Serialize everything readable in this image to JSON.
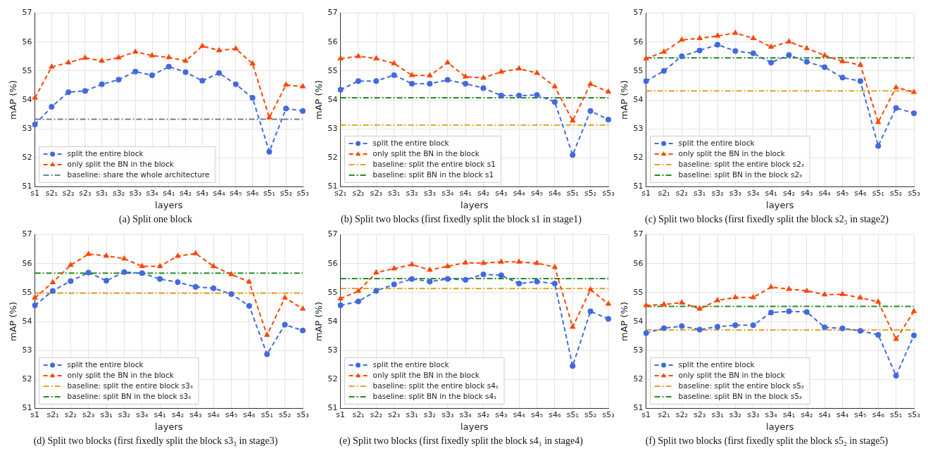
{
  "chart_data": [
    {
      "type": "line",
      "title": "(a) Split one block",
      "xlabel": "layers",
      "ylabel": "mAP (%)",
      "ylim": [
        51,
        57
      ],
      "yticks": [
        51,
        52,
        53,
        54,
        55,
        56,
        57
      ],
      "grid": true,
      "legend": "bottom left",
      "line_style": "dashed",
      "categories": [
        "s1",
        "s2₁",
        "s2₂",
        "s2₃",
        "s3₁",
        "s3₂",
        "s3₃",
        "s3₄",
        "s4₁",
        "s4₂",
        "s4₃",
        "s4₄",
        "s4₅",
        "s4₆",
        "s5₁",
        "s5₂",
        "s5₃"
      ],
      "series": [
        {
          "name": "split the entire block",
          "color": "#4169e1",
          "marker": "circle",
          "values": [
            53.15,
            53.76,
            54.27,
            54.31,
            54.54,
            54.7,
            54.98,
            54.85,
            55.15,
            54.96,
            54.66,
            54.93,
            54.54,
            54.07,
            52.21,
            53.7,
            53.62
          ]
        },
        {
          "name": "only split the BN in the block",
          "color": "#ff4500",
          "marker": "triangle",
          "values": [
            54.07,
            55.14,
            55.29,
            55.45,
            55.35,
            55.46,
            55.66,
            55.53,
            55.47,
            55.35,
            55.86,
            55.71,
            55.77,
            55.25,
            53.39,
            54.52,
            54.46
          ]
        }
      ],
      "ref_lines": [
        {
          "axis": "y",
          "value": 53.33,
          "label": "baseline: share the whole architecture",
          "color": "#708090"
        }
      ]
    },
    {
      "type": "line",
      "title": "(b) Split two blocks (first fixedly split the block s1 in stage1)",
      "xlabel": "layers",
      "ylabel": "mAP (%)",
      "ylim": [
        51,
        57
      ],
      "yticks": [
        51,
        52,
        53,
        54,
        55,
        56,
        57
      ],
      "grid": true,
      "legend": "bottom left",
      "line_style": "dashed",
      "categories": [
        "s2₁",
        "s2₂",
        "s2₃",
        "s3₁",
        "s3₂",
        "s3₃",
        "s3₄",
        "s4₁",
        "s4₂",
        "s4₃",
        "s4₄",
        "s4₅",
        "s4₆",
        "s5₁",
        "s5₂",
        "s5₃"
      ],
      "series": [
        {
          "name": "split the entire block",
          "color": "#4169e1",
          "marker": "circle",
          "values": [
            54.35,
            54.65,
            54.65,
            54.86,
            54.56,
            54.56,
            54.69,
            54.56,
            54.41,
            54.15,
            54.15,
            54.17,
            53.93,
            52.1,
            53.62,
            53.32
          ]
        },
        {
          "name": "only split the BN in the block",
          "color": "#ff4500",
          "marker": "triangle",
          "values": [
            55.43,
            55.51,
            55.43,
            55.26,
            54.85,
            54.84,
            55.29,
            54.8,
            54.76,
            54.97,
            55.08,
            54.93,
            54.46,
            53.28,
            54.55,
            54.28
          ]
        }
      ],
      "ref_lines": [
        {
          "axis": "y",
          "value": 53.13,
          "label": "baseline: split the entire block s1",
          "color": "#e0a526"
        },
        {
          "axis": "y",
          "value": 54.07,
          "label": "baseline: split BN in the block s1",
          "color": "#228b22"
        }
      ]
    },
    {
      "type": "line",
      "title": "(c) Split two blocks (first fixedly split the block s2₃ in stage2)",
      "xlabel": "layers",
      "ylabel": "mAP (%)",
      "ylim": [
        51,
        57
      ],
      "yticks": [
        51,
        52,
        53,
        54,
        55,
        56,
        57
      ],
      "grid": true,
      "legend": "bottom left",
      "line_style": "dashed",
      "categories": [
        "s1",
        "s2₁",
        "s2₂",
        "s3₁",
        "s3₂",
        "s3₃",
        "s3₄",
        "s4₁",
        "s4₂",
        "s4₃",
        "s4₄",
        "s4₅",
        "s4₆",
        "s5₁",
        "s5₂",
        "s5₃"
      ],
      "series": [
        {
          "name": "split the entire block",
          "color": "#4169e1",
          "marker": "circle",
          "values": [
            54.65,
            55.0,
            55.51,
            55.71,
            55.91,
            55.69,
            55.61,
            55.29,
            55.55,
            55.32,
            55.13,
            54.77,
            54.65,
            52.41,
            53.72,
            53.54
          ]
        },
        {
          "name": "only split the BN in the block",
          "color": "#ff4500",
          "marker": "triangle",
          "values": [
            55.43,
            55.66,
            56.07,
            56.13,
            56.21,
            56.31,
            56.13,
            55.83,
            56.01,
            55.78,
            55.54,
            55.33,
            55.21,
            53.23,
            54.43,
            54.27
          ]
        }
      ],
      "ref_lines": [
        {
          "axis": "y",
          "value": 54.31,
          "label": "baseline: split the entire block s2₃",
          "color": "#e0a526"
        },
        {
          "axis": "y",
          "value": 55.45,
          "label": "baseline: split BN in the block s2₃",
          "color": "#228b22"
        }
      ]
    },
    {
      "type": "line",
      "title": "(d) Split two blocks (first fixedly split the block s3₃ in stage3)",
      "xlabel": "layers",
      "ylabel": "mAP (%)",
      "ylim": [
        51,
        57
      ],
      "yticks": [
        51,
        52,
        53,
        54,
        55,
        56,
        57
      ],
      "grid": true,
      "legend": "bottom left",
      "line_style": "dashed",
      "categories": [
        "s1",
        "s2₁",
        "s2₂",
        "s2₃",
        "s3₁",
        "s3₂",
        "s3₄",
        "s4₁",
        "s4₂",
        "s4₃",
        "s4₄",
        "s4₅",
        "s4₆",
        "s5₁",
        "s5₂",
        "s5₃"
      ],
      "series": [
        {
          "name": "split the entire block",
          "color": "#4169e1",
          "marker": "circle",
          "values": [
            54.56,
            55.06,
            55.4,
            55.69,
            55.41,
            55.71,
            55.67,
            55.47,
            55.36,
            55.2,
            55.15,
            54.95,
            54.54,
            52.87,
            53.89,
            53.69
          ]
        },
        {
          "name": "only split the BN in the block",
          "color": "#ff4500",
          "marker": "triangle",
          "values": [
            54.82,
            55.35,
            55.95,
            56.33,
            56.27,
            56.17,
            55.91,
            55.91,
            56.26,
            56.35,
            55.91,
            55.63,
            55.37,
            53.53,
            54.82,
            54.44
          ]
        }
      ],
      "ref_lines": [
        {
          "axis": "y",
          "value": 54.98,
          "label": "baseline: split the entire block s3₃",
          "color": "#e0a526"
        },
        {
          "axis": "y",
          "value": 55.67,
          "label": "baseline: split BN in the block s3₃",
          "color": "#228b22"
        }
      ]
    },
    {
      "type": "line",
      "title": "(e) Split two blocks (first fixedly split the block s4₁ in stage4)",
      "xlabel": "layers",
      "ylabel": "mAP (%)",
      "ylim": [
        51,
        57
      ],
      "yticks": [
        51,
        52,
        53,
        54,
        55,
        56,
        57
      ],
      "grid": true,
      "legend": "bottom left",
      "line_style": "dashed",
      "categories": [
        "s1",
        "s2₁",
        "s2₂",
        "s2₃",
        "s3₁",
        "s3₂",
        "s3₃",
        "s3₄",
        "s4₂",
        "s4₃",
        "s4₄",
        "s4₅",
        "s4₆",
        "s5₁",
        "s5₂",
        "s5₃"
      ],
      "series": [
        {
          "name": "split the entire block",
          "color": "#4169e1",
          "marker": "circle",
          "values": [
            54.56,
            54.69,
            55.06,
            55.28,
            55.47,
            55.38,
            55.47,
            55.44,
            55.63,
            55.6,
            55.31,
            55.38,
            55.31,
            52.46,
            54.35,
            54.09
          ]
        },
        {
          "name": "only split the BN in the block",
          "color": "#ff4500",
          "marker": "triangle",
          "values": [
            54.79,
            55.05,
            55.69,
            55.83,
            55.97,
            55.78,
            55.91,
            56.03,
            56.02,
            56.06,
            56.06,
            56.02,
            55.88,
            53.81,
            55.1,
            54.61
          ]
        }
      ],
      "ref_lines": [
        {
          "axis": "y",
          "value": 55.14,
          "label": "baseline: split the entire block s4₁",
          "color": "#e0a526"
        },
        {
          "axis": "y",
          "value": 55.48,
          "label": "baseline: split BN in the block s4₁",
          "color": "#228b22"
        }
      ]
    },
    {
      "type": "line",
      "title": "(f) Split two blocks (first fixedly split the block s5₂ in stage5)",
      "xlabel": "layers",
      "ylabel": "mAP (%)",
      "ylim": [
        51,
        57
      ],
      "yticks": [
        51,
        52,
        53,
        54,
        55,
        56,
        57
      ],
      "grid": true,
      "legend": "bottom left",
      "line_style": "dashed",
      "categories": [
        "s1",
        "s2₁",
        "s2₂",
        "s2₃",
        "s3₁",
        "s3₂",
        "s3₃",
        "s3₄",
        "s4₁",
        "s4₂",
        "s4₃",
        "s4₄",
        "s4₅",
        "s4₆",
        "s5₁",
        "s5₃"
      ],
      "series": [
        {
          "name": "split the entire block",
          "color": "#4169e1",
          "marker": "circle",
          "values": [
            53.6,
            53.77,
            53.84,
            53.72,
            53.82,
            53.87,
            53.87,
            54.31,
            54.35,
            54.33,
            53.8,
            53.76,
            53.68,
            53.54,
            52.13,
            53.52
          ]
        },
        {
          "name": "only split the BN in the block",
          "color": "#ff4500",
          "marker": "triangle",
          "values": [
            54.56,
            54.59,
            54.65,
            54.44,
            54.73,
            54.83,
            54.83,
            55.19,
            55.12,
            55.06,
            54.93,
            54.94,
            54.82,
            54.68,
            53.39,
            54.35
          ]
        }
      ],
      "ref_lines": [
        {
          "axis": "y",
          "value": 53.71,
          "label": "baseline: split the entire block s5₂",
          "color": "#e0a526"
        },
        {
          "axis": "y",
          "value": 54.52,
          "label": "baseline: split BN in the block s5₂",
          "color": "#228b22"
        }
      ]
    }
  ]
}
